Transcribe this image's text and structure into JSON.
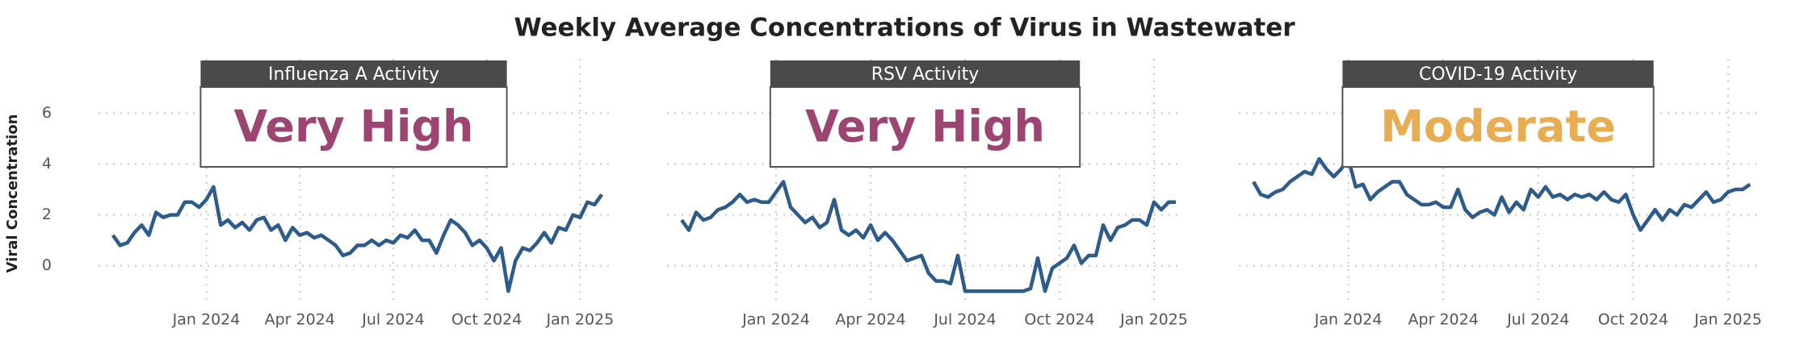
{
  "title": "Weekly Average Concentrations of Virus in Wastewater",
  "y_label": "Viral Concentration",
  "chart_data": [
    {
      "type": "line",
      "title": "Influenza A Activity",
      "status": "Very High",
      "status_color": "#9c4573",
      "x": [
        0,
        1,
        2,
        3,
        4,
        5,
        6,
        7,
        8,
        9,
        10,
        11,
        12,
        13,
        14,
        15,
        16,
        17,
        18,
        19,
        20,
        21,
        22,
        23,
        24,
        25,
        26,
        27,
        28,
        29,
        30,
        31,
        32,
        33,
        34,
        35,
        36,
        37,
        38,
        39,
        40,
        41,
        42,
        43,
        44,
        45,
        46,
        47,
        48,
        49,
        50,
        51,
        52,
        53,
        54,
        55,
        56,
        57,
        58,
        59,
        60,
        61,
        62,
        63,
        64,
        65,
        66,
        67,
        68
      ],
      "series": [
        {
          "name": "Influenza A",
          "color": "#2d5b8c",
          "values": [
            1.2,
            0.8,
            0.9,
            1.3,
            1.6,
            1.2,
            2.1,
            1.9,
            2.0,
            2.0,
            2.5,
            2.5,
            2.3,
            2.6,
            3.1,
            1.6,
            1.8,
            1.5,
            1.7,
            1.4,
            1.8,
            1.9,
            1.4,
            1.6,
            1.0,
            1.5,
            1.2,
            1.3,
            1.1,
            1.2,
            1.0,
            0.8,
            0.4,
            0.5,
            0.8,
            0.8,
            1.0,
            0.8,
            1.0,
            0.9,
            1.2,
            1.1,
            1.4,
            1.0,
            1.0,
            0.5,
            1.2,
            1.8,
            1.6,
            1.3,
            0.8,
            1.0,
            0.7,
            0.2,
            0.7,
            -1.0,
            0.2,
            0.7,
            0.6,
            0.9,
            1.3,
            0.9,
            1.5,
            1.4,
            2.0,
            1.9,
            2.5,
            2.4,
            2.8
          ]
        }
      ],
      "xlim": [
        -2,
        69
      ],
      "xticks": [
        {
          "value": 13,
          "label": "Jan 2024"
        },
        {
          "value": 26,
          "label": "Apr 2024"
        },
        {
          "value": 39,
          "label": "Jul 2024"
        },
        {
          "value": 52,
          "label": "Oct 2024"
        },
        {
          "value": 65,
          "label": "Jan 2025"
        }
      ],
      "ylim": [
        -1.5,
        7.5
      ],
      "yticks": [
        0,
        2,
        4,
        6
      ],
      "grid": true
    },
    {
      "type": "line",
      "title": "RSV Activity",
      "status": "Very High",
      "status_color": "#9c4573",
      "x": [
        0,
        1,
        2,
        3,
        4,
        5,
        6,
        7,
        8,
        9,
        10,
        11,
        12,
        13,
        14,
        15,
        16,
        17,
        18,
        19,
        20,
        21,
        22,
        23,
        24,
        25,
        26,
        27,
        28,
        29,
        30,
        31,
        32,
        33,
        34,
        35,
        36,
        37,
        38,
        39,
        40,
        41,
        42,
        43,
        44,
        45,
        46,
        47,
        48,
        49,
        50,
        51,
        52,
        53,
        54,
        55,
        56,
        57,
        58,
        59,
        60,
        61,
        62,
        63,
        64,
        65,
        66,
        67,
        68
      ],
      "series": [
        {
          "name": "RSV",
          "color": "#2d5b8c",
          "values": [
            1.8,
            1.4,
            2.1,
            1.8,
            1.9,
            2.2,
            2.3,
            2.5,
            2.8,
            2.5,
            2.6,
            2.5,
            2.5,
            2.9,
            3.3,
            2.3,
            2.0,
            1.7,
            1.9,
            1.5,
            1.7,
            2.6,
            1.4,
            1.2,
            1.4,
            1.1,
            1.6,
            1.0,
            1.3,
            1.0,
            0.6,
            0.2,
            0.3,
            0.4,
            -0.3,
            -0.6,
            -0.6,
            -0.7,
            0.4,
            -1,
            -1,
            -1,
            -1,
            -1,
            -1,
            -1,
            -1,
            -1,
            -0.9,
            0.3,
            -1.0,
            -0.1,
            0.1,
            0.3,
            0.8,
            0.1,
            0.4,
            0.4,
            1.6,
            1.0,
            1.5,
            1.6,
            1.8,
            1.8,
            1.6,
            2.5,
            2.2,
            2.5,
            2.5
          ]
        }
      ],
      "xlim": [
        -2,
        69
      ],
      "xticks": [
        {
          "value": 13,
          "label": "Jan 2024"
        },
        {
          "value": 26,
          "label": "Apr 2024"
        },
        {
          "value": 39,
          "label": "Jul 2024"
        },
        {
          "value": 52,
          "label": "Oct 2024"
        },
        {
          "value": 65,
          "label": "Jan 2025"
        }
      ],
      "ylim": [
        -1.5,
        7.5
      ],
      "yticks": [
        0,
        2,
        4,
        6
      ],
      "grid": true
    },
    {
      "type": "line",
      "title": "COVID-19 Activity",
      "status": "Moderate",
      "status_color": "#e8ac52",
      "x": [
        0,
        1,
        2,
        3,
        4,
        5,
        6,
        7,
        8,
        9,
        10,
        11,
        12,
        13,
        14,
        15,
        16,
        17,
        18,
        19,
        20,
        21,
        22,
        23,
        24,
        25,
        26,
        27,
        28,
        29,
        30,
        31,
        32,
        33,
        34,
        35,
        36,
        37,
        38,
        39,
        40,
        41,
        42,
        43,
        44,
        45,
        46,
        47,
        48,
        49,
        50,
        51,
        52,
        53,
        54,
        55,
        56,
        57,
        58,
        59,
        60,
        61,
        62,
        63,
        64,
        65,
        66,
        67,
        68
      ],
      "series": [
        {
          "name": "COVID-19",
          "color": "#2d5b8c",
          "values": [
            3.3,
            2.8,
            2.7,
            2.9,
            3.0,
            3.3,
            3.5,
            3.7,
            3.6,
            4.2,
            3.8,
            3.5,
            3.8,
            4.2,
            3.1,
            3.2,
            2.6,
            2.9,
            3.1,
            3.3,
            3.3,
            2.8,
            2.6,
            2.4,
            2.4,
            2.5,
            2.3,
            2.3,
            3.0,
            2.2,
            1.9,
            2.1,
            2.2,
            2.0,
            2.7,
            2.1,
            2.5,
            2.2,
            3.0,
            2.7,
            3.1,
            2.7,
            2.8,
            2.6,
            2.8,
            2.7,
            2.8,
            2.6,
            2.9,
            2.6,
            2.5,
            2.8,
            2.0,
            1.4,
            1.8,
            2.2,
            1.8,
            2.2,
            2.0,
            2.4,
            2.3,
            2.6,
            2.9,
            2.5,
            2.6,
            2.9,
            3.0,
            3.0,
            3.2
          ]
        }
      ],
      "xlim": [
        -2,
        69
      ],
      "xticks": [
        {
          "value": 13,
          "label": "Jan 2024"
        },
        {
          "value": 26,
          "label": "Apr 2024"
        },
        {
          "value": 39,
          "label": "Jul 2024"
        },
        {
          "value": 52,
          "label": "Oct 2024"
        },
        {
          "value": 65,
          "label": "Jan 2025"
        }
      ],
      "ylim": [
        -1.5,
        7.5
      ],
      "yticks": [
        0,
        2,
        4,
        6
      ],
      "grid": true
    }
  ]
}
